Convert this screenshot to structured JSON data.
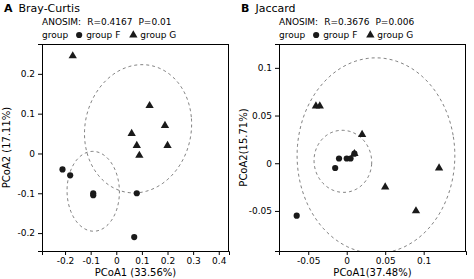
{
  "chart_data": [
    {
      "type": "scatter",
      "title": "Bray-Curtis",
      "xlabel": "PCoA1 (33.56%)",
      "ylabel": "PCoA2 (17.11%)",
      "annotations": [
        "A",
        "ANOSIM:",
        "R=0.4167",
        "P=0.01"
      ],
      "legend_title": "group",
      "legend": "top",
      "grid": false,
      "xlim": [
        -0.29,
        0.44
      ],
      "ylim": [
        -0.245,
        0.275
      ],
      "xticks": [
        -0.2,
        -0.1,
        0,
        0.1,
        0.2,
        0.3,
        0.4
      ],
      "yticks": [
        -0.2,
        -0.1,
        0,
        0.1,
        0.2
      ],
      "series": [
        {
          "name": "group F",
          "color": "#1a1a1a",
          "marker": "circle",
          "x": [
            -0.21,
            -0.18,
            -0.09,
            -0.09,
            0.07,
            0.08
          ],
          "values": [
            -0.04,
            -0.055,
            -0.1,
            -0.105,
            -0.21,
            -0.1
          ],
          "ellipse": {
            "cx": -0.09,
            "cy": -0.095,
            "width": 0.205,
            "height": 0.2,
            "angle": -20
          }
        },
        {
          "name": "group G",
          "color": "#1a1a1a",
          "marker": "triangle",
          "x": [
            -0.17,
            0.06,
            0.08,
            0.09,
            0.13,
            0.19,
            0.2
          ],
          "values": [
            0.245,
            0.05,
            0.02,
            -0.005,
            0.12,
            0.07,
            0.02
          ],
          "ellipse": {
            "cx": 0.085,
            "cy": 0.062,
            "width": 0.42,
            "height": 0.32,
            "angle": 8
          }
        }
      ]
    },
    {
      "type": "scatter",
      "title": "Jaccard",
      "xlabel": "PCoA1(37.48%)",
      "ylabel": "PCoA2(15.71%)",
      "annotations": [
        "B",
        "ANOSIM:",
        "R=0.3676",
        "P=0.006"
      ],
      "legend_title": "group",
      "legend": "top",
      "grid": false,
      "xlim": [
        -0.088,
        0.155
      ],
      "ylim": [
        -0.092,
        0.125
      ],
      "xticks": [
        -0.05,
        0,
        0.05,
        0.1
      ],
      "yticks": [
        -0.05,
        0,
        0.05,
        0.1
      ],
      "series": [
        {
          "name": "group F",
          "color": "#1a1a1a",
          "marker": "circle",
          "x": [
            -0.065,
            -0.015,
            -0.01,
            0.0,
            0.005,
            0.01
          ],
          "values": [
            -0.055,
            -0.005,
            0.005,
            0.005,
            0.005,
            0.01
          ],
          "ellipse": {
            "cx": -0.005,
            "cy": 0.002,
            "width": 0.075,
            "height": 0.065,
            "angle": -5
          }
        },
        {
          "name": "group G",
          "color": "#1a1a1a",
          "marker": "triangle",
          "x": [
            -0.04,
            -0.035,
            0.01,
            0.02,
            0.05,
            0.09,
            0.12
          ],
          "values": [
            0.06,
            0.06,
            0.01,
            0.03,
            -0.025,
            -0.05,
            -0.005
          ],
          "ellipse": {
            "cx": 0.038,
            "cy": 0.008,
            "width": 0.205,
            "height": 0.205,
            "angle": 12
          }
        }
      ]
    }
  ]
}
